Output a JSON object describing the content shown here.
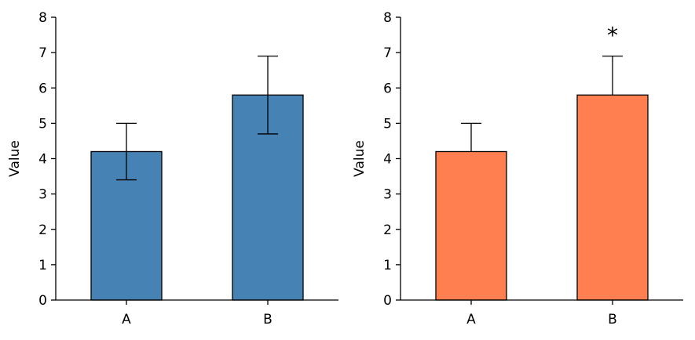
{
  "chart_data": [
    {
      "type": "bar",
      "categories": [
        "A",
        "B"
      ],
      "values": [
        4.2,
        5.8
      ],
      "error": {
        "style": "symmetric",
        "values": [
          0.8,
          1.1
        ]
      },
      "color": "#4682b4",
      "title": "",
      "xlabel": "",
      "ylabel": "Value",
      "ylim": [
        0,
        8
      ],
      "yticks": [
        0,
        1,
        2,
        3,
        4,
        5,
        6,
        7,
        8
      ],
      "spines": [
        "left",
        "bottom"
      ],
      "grid": false,
      "annotations": []
    },
    {
      "type": "bar",
      "categories": [
        "A",
        "B"
      ],
      "values": [
        4.2,
        5.8
      ],
      "error": {
        "style": "upper-only",
        "values": [
          0.8,
          1.1
        ]
      },
      "color": "#ff7f50",
      "title": "",
      "xlabel": "",
      "ylabel": "Value",
      "ylim": [
        0,
        8
      ],
      "yticks": [
        0,
        1,
        2,
        3,
        4,
        5,
        6,
        7,
        8
      ],
      "spines": [
        "left",
        "bottom"
      ],
      "grid": false,
      "annotations": [
        {
          "category": "B",
          "text": "*"
        }
      ]
    }
  ]
}
